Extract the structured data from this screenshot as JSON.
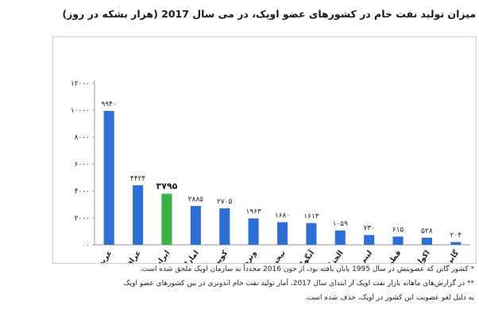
{
  "title": "میزان تولید نفت خام در کشورهای عضو اوپک، در می سال 2017 (هزار بشکه در روز)",
  "chart_data": {
    "type": "bar",
    "title": "میزان تولید نفت خام در کشورهای عضو اوپک، در می سال 2017 (هزار بشکه در روز)",
    "categories": [
      "عربستان",
      "عراق",
      "ایران",
      "امارات",
      "کویت",
      "ونزوئلا",
      "نیجریه",
      "آنگولا",
      "الجزایر",
      "لیبی",
      "قطر",
      "اکوادور",
      "گابن"
    ],
    "values": [
      9940,
      4424,
      3795,
      2885,
      2705,
      1963,
      1680,
      1613,
      1059,
      730,
      615,
      528,
      204
    ],
    "value_labels": [
      "۹۹۴۰",
      "۴۴۲۴",
      "۳۷۹۵",
      "۲۸۸۵",
      "۲۷۰۵",
      "۱۹۶۳",
      "۱۶۸۰",
      "۱۶۱۳",
      "۱۰۵۹",
      "۷۳۰",
      "۶۱۵",
      "۵۲۸",
      "۲۰۴"
    ],
    "highlight_category": "ایران",
    "ylim": [
      0,
      12000
    ],
    "yticks": [
      0,
      2000,
      4000,
      6000,
      8000,
      10000,
      12000
    ],
    "ytick_labels": [
      "۰",
      "۲۰۰۰",
      "۴۰۰۰",
      "۶۰۰۰",
      "۸۰۰۰",
      "۱۰۰۰۰",
      "۱۲۰۰۰"
    ],
    "xlabel": "",
    "ylabel": "",
    "grid": false,
    "colors": {
      "bar": "#2e6fd6",
      "highlight": "#3cb043",
      "axis": "#9a9a9a",
      "text": "#222222"
    }
  },
  "notes": [
    "* کشور گابن که عضویتش در سال 1995 پایان یافته بود، از جون 2016 مجدداً به سازمان اوپک ملحق شده است.",
    "** در گزارش‌های ماهانه بازار نفت اوپک از ابتدای سال 2017، آمار تولید نفت خام اندونزی در بین کشورهای عضو اوپک",
    "به دلیل لغو عضویت این کشور در اوپک، حذف شده است."
  ]
}
